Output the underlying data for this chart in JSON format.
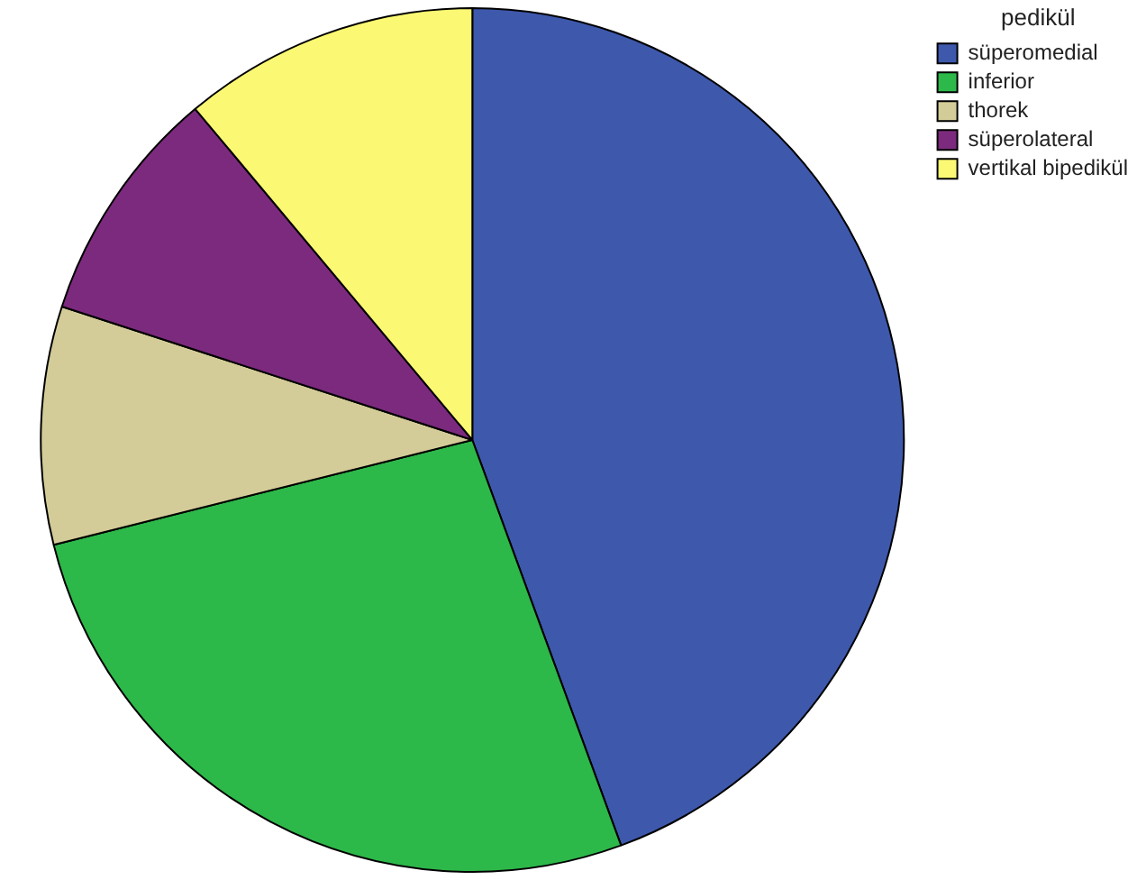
{
  "chart_data": {
    "type": "pie",
    "legend_title": "pedikül",
    "legend": "top right",
    "categories": [
      "süperomedial",
      "inferior",
      "thorek",
      "süperolateral",
      "vertikal bipedikül"
    ],
    "values": [
      44.4,
      26.7,
      8.9,
      8.9,
      11.1
    ],
    "colors": [
      "#3e58ac",
      "#2db84a",
      "#d4cc98",
      "#7c2a7e",
      "#fbf873"
    ]
  }
}
